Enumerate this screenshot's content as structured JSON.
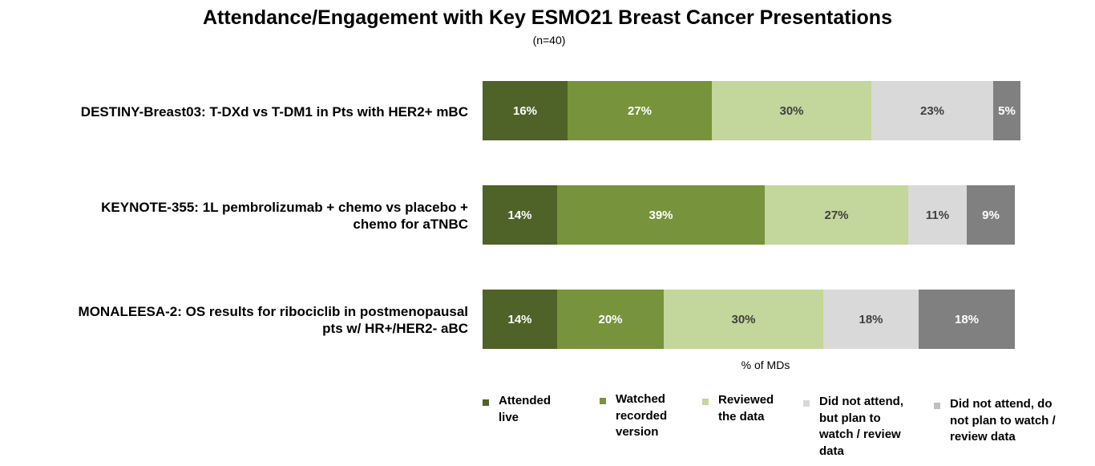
{
  "chart_data": {
    "type": "bar",
    "orientation": "horizontal",
    "stacked": true,
    "title": "Attendance/Engagement with Key ESMO21 Breast Cancer Presentations",
    "subtitle": "(n=40)",
    "xlabel": "% of MDs",
    "xlim": [
      0,
      100
    ],
    "categories": [
      [
        "DESTINY-Breast03: T-DXd vs T-DM1 in Pts with HER2+ mBC"
      ],
      [
        "KEYNOTE-355: 1L pembrolizumab + chemo vs placebo +",
        "chemo for aTNBC"
      ],
      [
        "MONALEESA-2: OS results for ribociclib in postmenopausal",
        "pts w/ HR+/HER2- aBC"
      ]
    ],
    "series": [
      {
        "name": [
          "Attended",
          "live"
        ],
        "color": "#4f6228",
        "text_color": "#ffffff",
        "values": [
          16,
          14,
          14
        ],
        "labels": [
          "16%",
          "14%",
          "14%"
        ]
      },
      {
        "name": [
          "Watched",
          "recorded",
          "version"
        ],
        "color": "#77933c",
        "text_color": "#ffffff",
        "values": [
          27,
          39,
          20
        ],
        "labels": [
          "27%",
          "39%",
          "20%"
        ]
      },
      {
        "name": [
          "Reviewed",
          "the data"
        ],
        "color": "#c3d69b",
        "text_color": "#404040",
        "values": [
          30,
          27,
          30
        ],
        "labels": [
          "30%",
          "27%",
          "30%"
        ]
      },
      {
        "name": [
          "Did not attend,",
          "but plan to",
          "watch / review",
          "data"
        ],
        "color": "#d9d9d9",
        "text_color": "#404040",
        "values": [
          23,
          11,
          18
        ],
        "labels": [
          "23%",
          "11%",
          "18%"
        ]
      },
      {
        "name": [
          "Did not attend, do",
          "not plan to watch /",
          "review data"
        ],
        "color": "#808080",
        "legend_color": "#bfbfbf",
        "text_color": "#ffffff",
        "values": [
          5,
          9,
          18
        ],
        "labels": [
          "5%",
          "9%",
          "18%"
        ]
      }
    ],
    "legend_position": "bottom",
    "grid": false
  }
}
